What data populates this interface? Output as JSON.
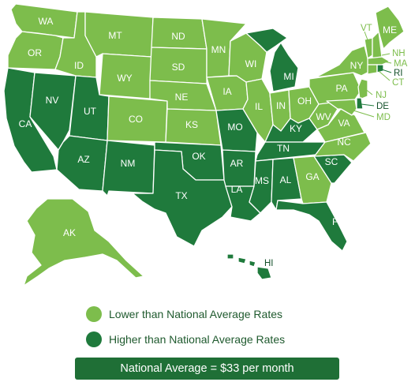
{
  "colors": {
    "lower": "#7dbd4c",
    "higher": "#1f7a3c",
    "banner_bg": "#1f6f36",
    "legend_text": "#1f5a2e"
  },
  "legend": {
    "lower_label": "Lower than National Average Rates",
    "higher_label": "Higher than National Average Rates"
  },
  "banner": {
    "text": "National Average = $33 per month"
  },
  "states": [
    {
      "code": "WA",
      "category": "lower"
    },
    {
      "code": "OR",
      "category": "lower"
    },
    {
      "code": "CA",
      "category": "higher"
    },
    {
      "code": "NV",
      "category": "higher"
    },
    {
      "code": "ID",
      "category": "lower"
    },
    {
      "code": "MT",
      "category": "lower"
    },
    {
      "code": "WY",
      "category": "lower"
    },
    {
      "code": "UT",
      "category": "higher"
    },
    {
      "code": "AZ",
      "category": "higher"
    },
    {
      "code": "CO",
      "category": "lower"
    },
    {
      "code": "NM",
      "category": "higher"
    },
    {
      "code": "ND",
      "category": "lower"
    },
    {
      "code": "SD",
      "category": "lower"
    },
    {
      "code": "NE",
      "category": "lower"
    },
    {
      "code": "KS",
      "category": "lower"
    },
    {
      "code": "OK",
      "category": "higher"
    },
    {
      "code": "TX",
      "category": "higher"
    },
    {
      "code": "MN",
      "category": "lower"
    },
    {
      "code": "IA",
      "category": "lower"
    },
    {
      "code": "MO",
      "category": "higher"
    },
    {
      "code": "AR",
      "category": "higher"
    },
    {
      "code": "LA",
      "category": "higher"
    },
    {
      "code": "WI",
      "category": "lower"
    },
    {
      "code": "IL",
      "category": "lower"
    },
    {
      "code": "MI",
      "category": "higher"
    },
    {
      "code": "IN",
      "category": "lower"
    },
    {
      "code": "OH",
      "category": "lower"
    },
    {
      "code": "KY",
      "category": "higher"
    },
    {
      "code": "TN",
      "category": "higher"
    },
    {
      "code": "MS",
      "category": "higher"
    },
    {
      "code": "AL",
      "category": "higher"
    },
    {
      "code": "GA",
      "category": "lower"
    },
    {
      "code": "FL",
      "category": "higher"
    },
    {
      "code": "SC",
      "category": "higher"
    },
    {
      "code": "NC",
      "category": "lower"
    },
    {
      "code": "VA",
      "category": "lower"
    },
    {
      "code": "WV",
      "category": "lower"
    },
    {
      "code": "PA",
      "category": "lower"
    },
    {
      "code": "NY",
      "category": "lower"
    },
    {
      "code": "VT",
      "category": "lower"
    },
    {
      "code": "NH",
      "category": "lower"
    },
    {
      "code": "ME",
      "category": "lower"
    },
    {
      "code": "MA",
      "category": "lower"
    },
    {
      "code": "RI",
      "category": "higher"
    },
    {
      "code": "CT",
      "category": "lower"
    },
    {
      "code": "NJ",
      "category": "lower"
    },
    {
      "code": "DE",
      "category": "higher"
    },
    {
      "code": "MD",
      "category": "lower"
    },
    {
      "code": "AK",
      "category": "lower"
    },
    {
      "code": "HI",
      "category": "higher"
    }
  ]
}
